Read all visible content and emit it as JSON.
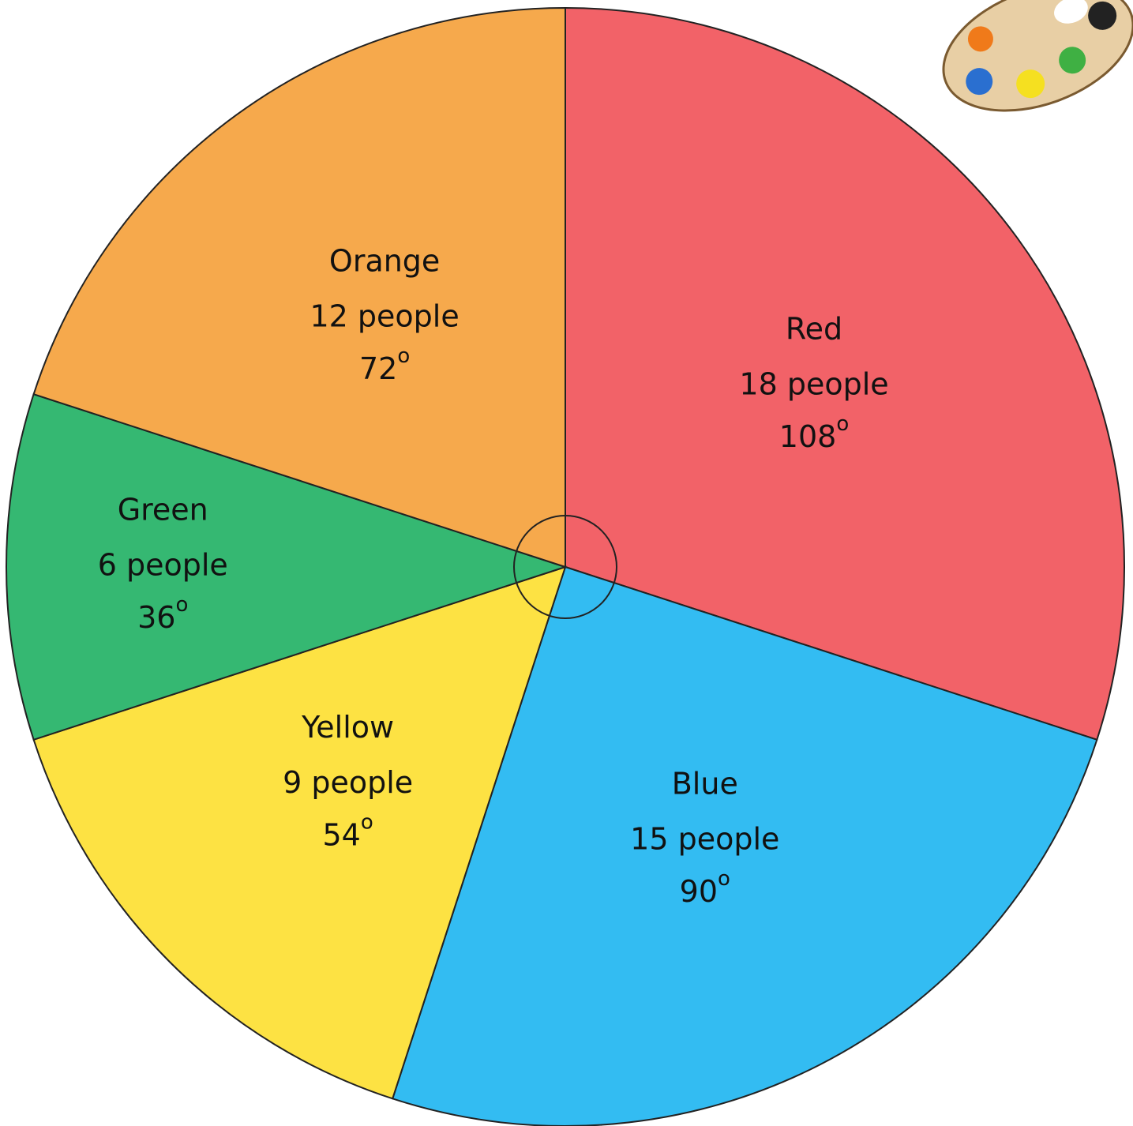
{
  "chart_data": {
    "type": "pie",
    "categories": [
      "Red",
      "Blue",
      "Yellow",
      "Green",
      "Orange"
    ],
    "values": [
      18,
      15,
      9,
      6,
      12
    ],
    "value_labels": [
      "18 people",
      "15 people",
      "9 people",
      "6 people",
      "12 people"
    ],
    "angles": [
      108,
      90,
      54,
      36,
      72
    ],
    "angle_unit": "o",
    "colors": [
      "#f26268",
      "#33bcf2",
      "#fde243",
      "#35b872",
      "#f6a94c"
    ]
  }
}
